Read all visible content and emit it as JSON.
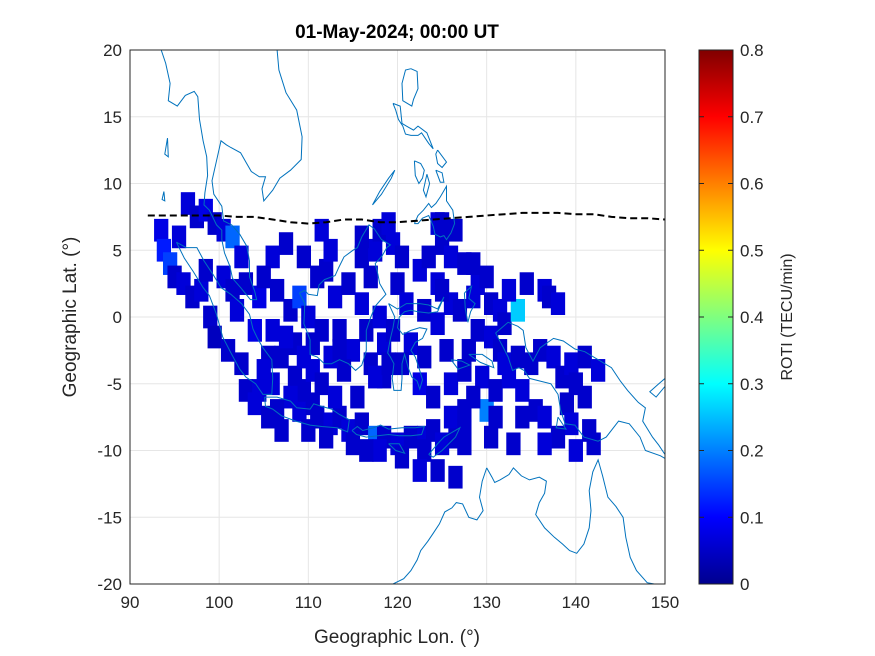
{
  "chart_data": {
    "type": "heatmap",
    "title": "01-May-2024; 00:00 UT",
    "xlabel": "Geographic Lon. (°)",
    "ylabel": "Geographic Lat. (°)",
    "xlim": [
      90,
      150
    ],
    "ylim": [
      -20,
      20
    ],
    "xticks": [
      "90",
      "100",
      "110",
      "120",
      "130",
      "140",
      "150"
    ],
    "yticks": [
      "20",
      "15",
      "10",
      "5",
      "0",
      "-5",
      "-10",
      "-15",
      "-20"
    ],
    "grid": true,
    "colorbar": {
      "label": "ROTI (TECU/min)",
      "range": [
        0,
        0.8
      ],
      "ticks": [
        "0",
        "0.1",
        "0.2",
        "0.3",
        "0.4",
        "0.5",
        "0.6",
        "0.7",
        "0.8"
      ],
      "colormap": "jet"
    },
    "colors": {
      "coastline": "#0072BD",
      "equator_line": "#000000"
    },
    "magnetic_equator": [
      [
        92,
        7.6
      ],
      [
        96,
        7.6
      ],
      [
        100,
        7.6
      ],
      [
        102,
        7.5
      ],
      [
        104,
        7.5
      ],
      [
        106,
        7.3
      ],
      [
        108,
        7.1
      ],
      [
        110,
        7.0
      ],
      [
        112,
        7.1
      ],
      [
        114,
        7.3
      ],
      [
        116,
        7.3
      ],
      [
        118,
        7.1
      ],
      [
        120,
        7.1
      ],
      [
        122,
        7.2
      ],
      [
        124,
        7.3
      ],
      [
        126,
        7.4
      ],
      [
        128,
        7.5
      ],
      [
        130,
        7.6
      ],
      [
        132,
        7.7
      ],
      [
        134,
        7.8
      ],
      [
        136,
        7.8
      ],
      [
        138,
        7.8
      ],
      [
        140,
        7.7
      ],
      [
        142,
        7.7
      ],
      [
        144,
        7.5
      ],
      [
        146,
        7.4
      ],
      [
        148,
        7.4
      ],
      [
        150,
        7.3
      ]
    ],
    "roti_cells": [
      [
        93.5,
        6.5,
        0.08
      ],
      [
        93.8,
        5.0,
        0.12
      ],
      [
        94.5,
        4.0,
        0.15
      ],
      [
        95.5,
        6.0,
        0.07
      ],
      [
        95.0,
        3.0,
        0.06
      ],
      [
        96.5,
        8.5,
        0.07
      ],
      [
        97.5,
        7.5,
        0.06
      ],
      [
        98.5,
        8.0,
        0.08
      ],
      [
        96.0,
        2.5,
        0.07
      ],
      [
        97.0,
        1.5,
        0.06
      ],
      [
        98.0,
        2.0,
        0.07
      ],
      [
        99.5,
        7.0,
        0.06
      ],
      [
        100.5,
        6.5,
        0.07
      ],
      [
        101.5,
        6.0,
        0.18
      ],
      [
        99.0,
        0.0,
        0.06
      ],
      [
        98.5,
        3.5,
        0.06
      ],
      [
        100.5,
        3.0,
        0.07
      ],
      [
        101.5,
        2.0,
        0.06
      ],
      [
        99.5,
        -1.5,
        0.05
      ],
      [
        101.0,
        -2.5,
        0.06
      ],
      [
        102.5,
        4.5,
        0.07
      ],
      [
        103.0,
        2.5,
        0.06
      ],
      [
        102.0,
        0.5,
        0.07
      ],
      [
        104.0,
        -1.0,
        0.08
      ],
      [
        102.5,
        -3.5,
        0.06
      ],
      [
        103.0,
        -5.5,
        0.06
      ],
      [
        104.0,
        -6.5,
        0.07
      ],
      [
        105.5,
        -3.0,
        0.06
      ],
      [
        104.5,
        1.5,
        0.08
      ],
      [
        106.0,
        -1.0,
        0.07
      ],
      [
        107.0,
        -3.0,
        0.06
      ],
      [
        106.0,
        -5.0,
        0.07
      ],
      [
        105.5,
        -7.5,
        0.06
      ],
      [
        107.0,
        -8.5,
        0.06
      ],
      [
        105.0,
        -4.0,
        0.07
      ],
      [
        108.0,
        0.5,
        0.06
      ],
      [
        109.0,
        1.5,
        0.15
      ],
      [
        110.0,
        0.0,
        0.07
      ],
      [
        108.5,
        -2.0,
        0.06
      ],
      [
        110.5,
        -2.0,
        0.06
      ],
      [
        109.0,
        -7.0,
        0.07
      ],
      [
        111.0,
        -7.5,
        0.06
      ],
      [
        112.5,
        -8.0,
        0.07
      ],
      [
        110.0,
        -8.5,
        0.06
      ],
      [
        112.0,
        -9.0,
        0.06
      ],
      [
        113.5,
        -7.5,
        0.06
      ],
      [
        114.5,
        -8.5,
        0.07
      ],
      [
        116.0,
        -8.0,
        0.06
      ],
      [
        117.5,
        -9.0,
        0.18
      ],
      [
        115.0,
        -9.5,
        0.06
      ],
      [
        118.5,
        -9.0,
        0.06
      ],
      [
        120.0,
        -9.5,
        0.07
      ],
      [
        121.5,
        -9.0,
        0.06
      ],
      [
        123.0,
        -9.0,
        0.07
      ],
      [
        124.0,
        -8.5,
        0.06
      ],
      [
        123.0,
        -10.0,
        0.06
      ],
      [
        125.0,
        -9.5,
        0.07
      ],
      [
        126.5,
        -9.0,
        0.06
      ],
      [
        127.5,
        -9.5,
        0.06
      ],
      [
        124.5,
        -11.5,
        0.06
      ],
      [
        126.5,
        -12.0,
        0.06
      ],
      [
        122.5,
        -11.5,
        0.07
      ],
      [
        120.5,
        -10.5,
        0.06
      ],
      [
        118.0,
        -10.0,
        0.07
      ],
      [
        116.5,
        -10.0,
        0.06
      ],
      [
        112.0,
        3.5,
        0.06
      ],
      [
        113.0,
        1.5,
        0.07
      ],
      [
        114.5,
        2.5,
        0.06
      ],
      [
        116.0,
        1.0,
        0.07
      ],
      [
        117.0,
        3.0,
        0.06
      ],
      [
        113.5,
        -1.0,
        0.06
      ],
      [
        115.0,
        -2.5,
        0.07
      ],
      [
        116.5,
        -1.0,
        0.06
      ],
      [
        118.0,
        0.0,
        0.07
      ],
      [
        114.0,
        -4.0,
        0.06
      ],
      [
        117.0,
        -3.5,
        0.06
      ],
      [
        118.5,
        -2.0,
        0.07
      ],
      [
        116.0,
        4.5,
        0.06
      ],
      [
        117.5,
        5.0,
        0.07
      ],
      [
        118.0,
        6.5,
        0.06
      ],
      [
        119.5,
        5.5,
        0.07
      ],
      [
        120.5,
        4.5,
        0.06
      ],
      [
        120.0,
        2.5,
        0.06
      ],
      [
        121.0,
        1.0,
        0.07
      ],
      [
        119.5,
        -1.0,
        0.06
      ],
      [
        121.5,
        -2.0,
        0.07
      ],
      [
        120.5,
        -3.5,
        0.06
      ],
      [
        118.5,
        -4.5,
        0.06
      ],
      [
        122.5,
        3.5,
        0.07
      ],
      [
        123.5,
        4.5,
        0.06
      ],
      [
        124.5,
        2.5,
        0.07
      ],
      [
        123.0,
        0.5,
        0.06
      ],
      [
        124.5,
        -0.5,
        0.07
      ],
      [
        123.0,
        -3.0,
        0.06
      ],
      [
        122.5,
        -5.0,
        0.08
      ],
      [
        124.0,
        -6.0,
        0.06
      ],
      [
        126.0,
        -5.0,
        0.07
      ],
      [
        127.5,
        -4.0,
        0.06
      ],
      [
        125.5,
        -2.5,
        0.06
      ],
      [
        126.0,
        1.0,
        0.07
      ],
      [
        127.0,
        0.5,
        0.06
      ],
      [
        128.5,
        1.5,
        0.07
      ],
      [
        129.0,
        -1.0,
        0.06
      ],
      [
        128.0,
        -2.5,
        0.06
      ],
      [
        125.0,
        5.5,
        0.06
      ],
      [
        126.0,
        4.5,
        0.07
      ],
      [
        127.5,
        4.0,
        0.06
      ],
      [
        126.5,
        6.5,
        0.06
      ],
      [
        124.5,
        7.0,
        0.07
      ],
      [
        125.0,
        2.0,
        0.06
      ],
      [
        126.0,
        -7.5,
        0.07
      ],
      [
        127.5,
        -7.0,
        0.06
      ],
      [
        129.5,
        -4.5,
        0.07
      ],
      [
        130.0,
        -7.0,
        0.2
      ],
      [
        131.0,
        -5.5,
        0.06
      ],
      [
        130.5,
        -1.5,
        0.07
      ],
      [
        131.5,
        -2.5,
        0.06
      ],
      [
        132.5,
        -4.5,
        0.07
      ],
      [
        131.0,
        -7.5,
        0.06
      ],
      [
        130.5,
        -9.0,
        0.06
      ],
      [
        132.0,
        -3.5,
        0.07
      ],
      [
        133.5,
        -3.0,
        0.06
      ],
      [
        134.0,
        -5.5,
        0.07
      ],
      [
        135.0,
        -3.5,
        0.06
      ],
      [
        136.0,
        -2.5,
        0.06
      ],
      [
        137.5,
        -3.0,
        0.07
      ],
      [
        138.5,
        -4.5,
        0.06
      ],
      [
        139.5,
        -3.5,
        0.07
      ],
      [
        140.0,
        -5.0,
        0.06
      ],
      [
        141.0,
        -3.0,
        0.06
      ],
      [
        142.5,
        -4.0,
        0.07
      ],
      [
        139.0,
        -6.5,
        0.06
      ],
      [
        139.5,
        -8.0,
        0.07
      ],
      [
        141.0,
        -6.0,
        0.06
      ],
      [
        138.0,
        -9.0,
        0.06
      ],
      [
        140.0,
        -10.0,
        0.07
      ],
      [
        135.5,
        -7.0,
        0.06
      ],
      [
        136.5,
        -7.5,
        0.07
      ],
      [
        134.0,
        -7.5,
        0.06
      ],
      [
        133.0,
        -9.5,
        0.06
      ],
      [
        136.5,
        -9.5,
        0.07
      ],
      [
        141.5,
        -8.5,
        0.06
      ],
      [
        142.0,
        -9.5,
        0.06
      ],
      [
        129.0,
        2.5,
        0.07
      ],
      [
        130.5,
        1.0,
        0.06
      ],
      [
        131.5,
        0.5,
        0.07
      ],
      [
        132.0,
        -0.5,
        0.06
      ],
      [
        133.5,
        0.5,
        0.26
      ],
      [
        130.0,
        3.0,
        0.06
      ],
      [
        132.5,
        2.0,
        0.07
      ],
      [
        134.5,
        2.5,
        0.06
      ],
      [
        136.5,
        2.0,
        0.07
      ],
      [
        137.0,
        1.5,
        0.06
      ],
      [
        138.0,
        1.0,
        0.07
      ],
      [
        128.5,
        4.0,
        0.06
      ],
      [
        125.0,
        7.0,
        0.06
      ],
      [
        119.0,
        7.0,
        0.07
      ],
      [
        116.0,
        6.0,
        0.06
      ],
      [
        111.5,
        6.5,
        0.07
      ],
      [
        109.5,
        4.5,
        0.06
      ],
      [
        111.0,
        3.0,
        0.06
      ],
      [
        112.5,
        5.0,
        0.07
      ],
      [
        107.5,
        5.5,
        0.06
      ],
      [
        106.0,
        4.5,
        0.07
      ],
      [
        105.0,
        3.0,
        0.06
      ],
      [
        106.5,
        2.0,
        0.06
      ],
      [
        107.5,
        -1.5,
        0.07
      ],
      [
        108.5,
        -4.5,
        0.06
      ],
      [
        109.5,
        -5.5,
        0.06
      ],
      [
        110.5,
        -4.0,
        0.07
      ],
      [
        111.5,
        -5.0,
        0.06
      ],
      [
        112.5,
        -3.0,
        0.07
      ],
      [
        113.5,
        -2.5,
        0.06
      ],
      [
        111.5,
        -1.0,
        0.06
      ],
      [
        109.5,
        -3.0,
        0.07
      ],
      [
        127.5,
        -8.5,
        0.06
      ],
      [
        128.5,
        -6.0,
        0.06
      ],
      [
        117.5,
        -4.5,
        0.07
      ],
      [
        119.0,
        -3.5,
        0.06
      ],
      [
        115.5,
        -6.0,
        0.06
      ],
      [
        113.0,
        -6.0,
        0.07
      ],
      [
        110.5,
        -6.5,
        0.06
      ],
      [
        108.0,
        -6.0,
        0.07
      ],
      [
        106.5,
        -7.0,
        0.06
      ],
      [
        104.5,
        -5.5,
        0.07
      ]
    ]
  }
}
